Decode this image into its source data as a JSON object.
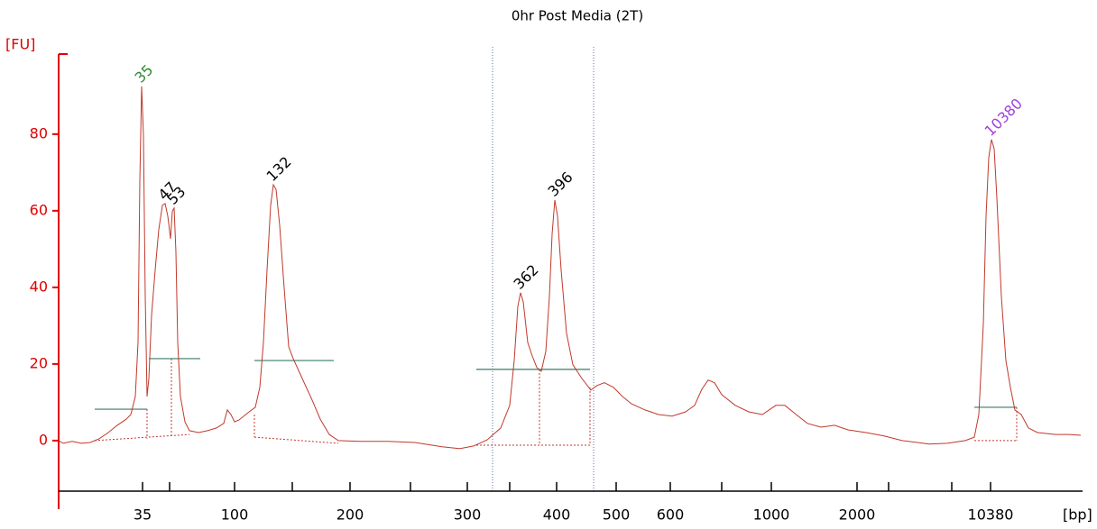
{
  "chart_data": {
    "type": "line",
    "title": "0hr Post Media (2T)",
    "y_label": "[FU]",
    "x_label": "[bp]",
    "color": "#c0392b",
    "axis_color": "#e00000",
    "xlim": [
      0,
      1135
    ],
    "ylim": [
      -17.9,
      100.9
    ],
    "yticks": [
      0,
      20,
      40,
      60,
      80
    ],
    "xticks": [
      {
        "value": 93,
        "label": "35"
      },
      {
        "value": 195,
        "label": "100"
      },
      {
        "value": 323,
        "label": "200"
      },
      {
        "value": 453,
        "label": "300"
      },
      {
        "value": 552,
        "label": "400"
      },
      {
        "value": 618,
        "label": "500"
      },
      {
        "value": 678,
        "label": "600"
      },
      {
        "value": 790,
        "label": "1000"
      },
      {
        "value": 885,
        "label": "2000"
      },
      {
        "value": 1033,
        "label": "10380"
      }
    ],
    "xticks_minor": [
      123,
      259,
      390,
      500,
      735,
      920,
      990
    ],
    "x": [
      0,
      5,
      15,
      25,
      35,
      45,
      55,
      65,
      75,
      80,
      85,
      88,
      90,
      92,
      94,
      96,
      98,
      100,
      103,
      107,
      111,
      115,
      118,
      121,
      124,
      126,
      128,
      130,
      132,
      135,
      140,
      145,
      155,
      165,
      175,
      183,
      187,
      191,
      195,
      200,
      210,
      218,
      223,
      227,
      231,
      235,
      238,
      241,
      245,
      250,
      255,
      260,
      270,
      280,
      290,
      300,
      310,
      335,
      365,
      395,
      425,
      445,
      460,
      475,
      490,
      500,
      505,
      509,
      512,
      515,
      520,
      525,
      530,
      535,
      540,
      544,
      547,
      550,
      553,
      557,
      563,
      570,
      580,
      590,
      597,
      605,
      615,
      625,
      635,
      650,
      665,
      680,
      695,
      705,
      713,
      720,
      727,
      735,
      750,
      765,
      780,
      795,
      805,
      815,
      830,
      845,
      860,
      875,
      895,
      915,
      935,
      965,
      985,
      1005,
      1015,
      1020,
      1025,
      1028,
      1031,
      1034,
      1037,
      1040,
      1045,
      1050,
      1055,
      1060,
      1067,
      1075,
      1085,
      1105,
      1120,
      1133
    ],
    "values": [
      0,
      -0.7,
      -0.2,
      -0.7,
      -0.5,
      0.5,
      2.1,
      4.0,
      5.6,
      6.8,
      11.5,
      25.6,
      68.0,
      92.5,
      79.8,
      37.6,
      11.5,
      16.2,
      32.7,
      44.5,
      55.1,
      61.4,
      61.9,
      58.6,
      52.7,
      59.8,
      60.7,
      49.2,
      25.6,
      11.5,
      4.9,
      2.6,
      2.1,
      2.6,
      3.3,
      4.5,
      8.0,
      6.8,
      4.9,
      5.4,
      7.3,
      8.7,
      13.9,
      25.6,
      44.5,
      61.4,
      66.8,
      65.6,
      56.2,
      39.8,
      24.5,
      21.4,
      16.2,
      11.1,
      5.6,
      1.6,
      0,
      -0.2,
      -0.2,
      -0.5,
      -1.6,
      -2.1,
      -1.4,
      0.2,
      3.3,
      9.2,
      20.9,
      35.1,
      38.6,
      36.2,
      25.6,
      22.1,
      19.1,
      18.1,
      23.3,
      37.6,
      53.9,
      62.8,
      58.6,
      44.5,
      28.0,
      19.8,
      16.2,
      13.2,
      14.4,
      15.1,
      13.9,
      11.5,
      9.6,
      8.0,
      6.8,
      6.4,
      7.5,
      9.2,
      13.4,
      15.8,
      15.1,
      12.0,
      9.2,
      7.5,
      6.8,
      9.2,
      9.2,
      7.3,
      4.5,
      3.5,
      4.0,
      2.8,
      2.1,
      1.2,
      0,
      -0.9,
      -0.7,
      0,
      0.9,
      6.8,
      30.4,
      58.6,
      73.9,
      78.6,
      76.2,
      63.3,
      37.6,
      20.9,
      13.9,
      8.0,
      6.8,
      3.3,
      2.1,
      1.6,
      1.6,
      1.4
    ],
    "peaks": [
      {
        "label": "35",
        "x": 92,
        "y": 92.5,
        "color": "#2e8b2e"
      },
      {
        "label": "47",
        "x": 118,
        "y": 61.9,
        "color": "#000000"
      },
      {
        "label": "53",
        "x": 128,
        "y": 60.7,
        "color": "#000000"
      },
      {
        "label": "132",
        "x": 238,
        "y": 66.8,
        "color": "#000000"
      },
      {
        "label": "362",
        "x": 512,
        "y": 38.6,
        "color": "#000000"
      },
      {
        "label": "396",
        "x": 550,
        "y": 62.8,
        "color": "#000000"
      },
      {
        "label": "10380",
        "x": 1034,
        "y": 78.6,
        "color": "#a040e0"
      }
    ],
    "levels": [
      {
        "x": [
          40,
          98
        ],
        "y": 8.2
      },
      {
        "x": [
          100,
          157
        ],
        "y": 21.4
      },
      {
        "x": [
          217,
          305
        ],
        "y": 20.9
      },
      {
        "x": [
          463,
          589
        ],
        "y": 18.6
      },
      {
        "x": [
          1015,
          1062
        ],
        "y": 8.7
      }
    ],
    "level_color": "#3a7a6a",
    "baselines": [
      {
        "x": [
          40,
          145
        ],
        "y": [
          0,
          1.6
        ]
      },
      {
        "x": [
          98,
          98
        ],
        "y": [
          8.2,
          0.5
        ]
      },
      {
        "x": [
          125,
          125
        ],
        "y": [
          21.4,
          1.2
        ]
      },
      {
        "x": [
          217,
          217
        ],
        "y": [
          6.8,
          0.9
        ]
      },
      {
        "x": [
          217,
          310
        ],
        "y": [
          0.9,
          -0.7
        ]
      },
      {
        "x": [
          463,
          589
        ],
        "y": [
          -1.2,
          -1.2
        ]
      },
      {
        "x": [
          533,
          533
        ],
        "y": [
          18.6,
          -1.2
        ]
      },
      {
        "x": [
          589,
          589
        ],
        "y": [
          13.9,
          -1.2
        ]
      },
      {
        "x": [
          1015,
          1062
        ],
        "y": [
          0,
          0
        ]
      },
      {
        "x": [
          1062,
          1062
        ],
        "y": [
          8.7,
          0
        ]
      }
    ],
    "markers": [
      481,
      593
    ],
    "marker_color": "#5b6fb0"
  }
}
